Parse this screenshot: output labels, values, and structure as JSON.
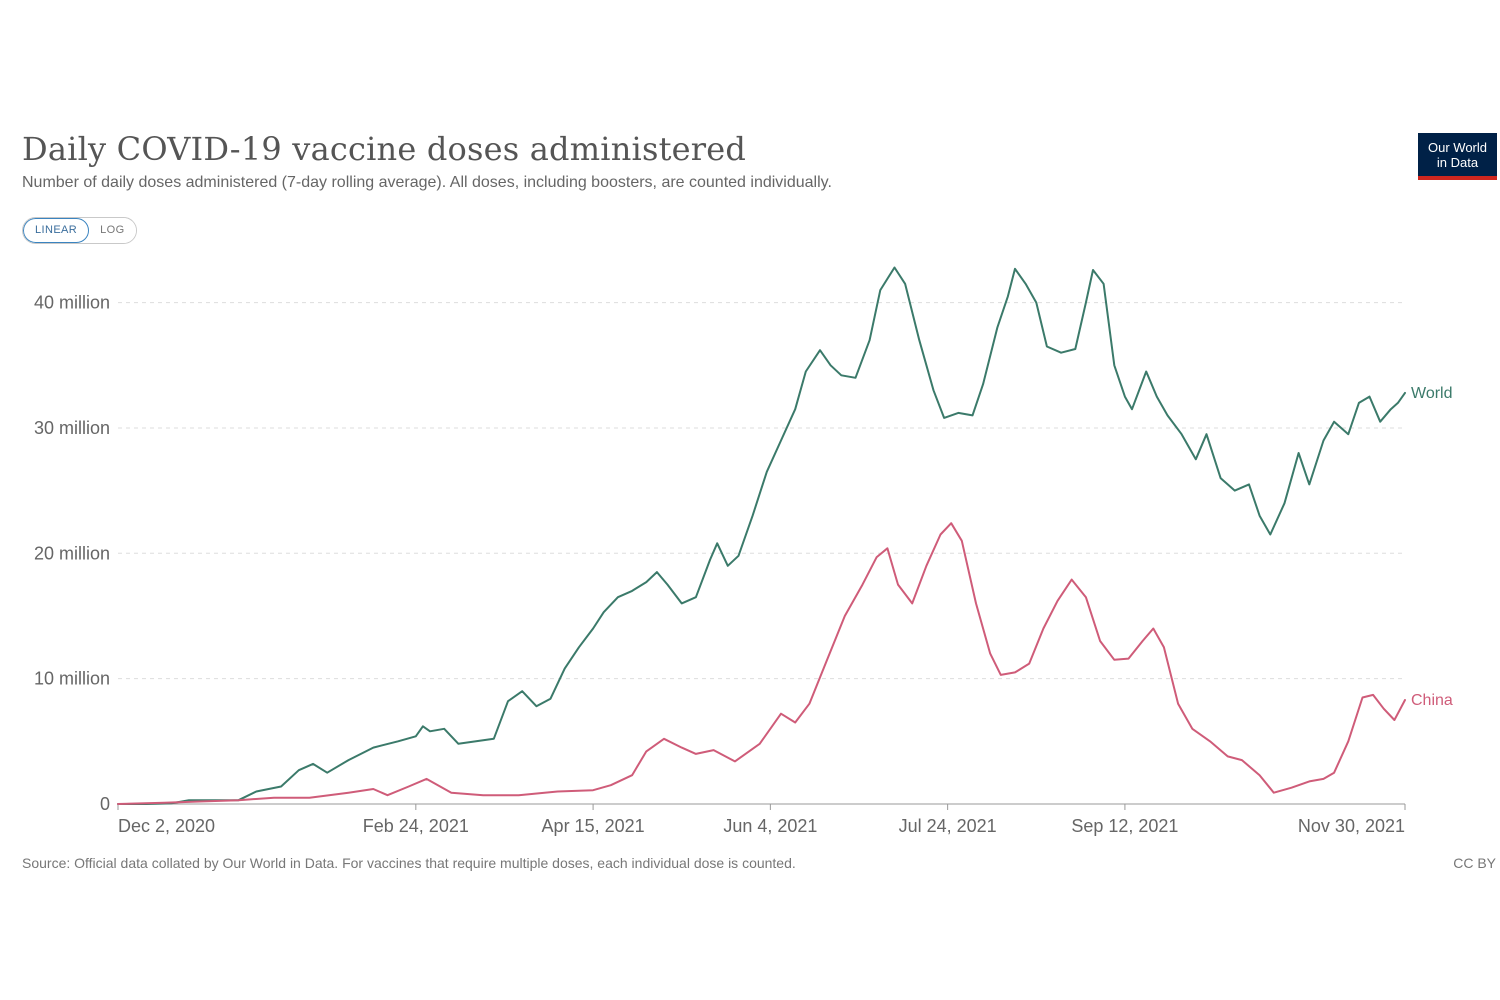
{
  "header": {
    "title": "Daily COVID-19 vaccine doses administered",
    "subtitle": "Number of daily doses administered (7-day rolling average). All doses, including boosters, are counted individually.",
    "logo_line1": "Our World",
    "logo_line2": "in Data"
  },
  "scale_toggle": {
    "options": [
      "LINEAR",
      "LOG"
    ],
    "selected": "LINEAR"
  },
  "footer": {
    "source": "Source: Official data collated by Our World in Data. For vaccines that require multiple doses, each individual dose is counted.",
    "license": "CC BY"
  },
  "colors": {
    "World": "#3b7a6a",
    "China": "#cf5c79",
    "grid": "#dddddd"
  },
  "chart_data": {
    "type": "line",
    "title": "Daily COVID-19 vaccine doses administered",
    "xlabel": "",
    "ylabel": "",
    "x_range": [
      "2020-12-02",
      "2021-11-30"
    ],
    "ylim": [
      0,
      43000000
    ],
    "y_ticks": [
      {
        "value": 0,
        "label": "0"
      },
      {
        "value": 10000000,
        "label": "10 million"
      },
      {
        "value": 20000000,
        "label": "20 million"
      },
      {
        "value": 30000000,
        "label": "30 million"
      },
      {
        "value": 40000000,
        "label": "40 million"
      }
    ],
    "x_ticks": [
      {
        "date": "2020-12-02",
        "label": "Dec 2, 2020"
      },
      {
        "date": "2021-02-24",
        "label": "Feb 24, 2021"
      },
      {
        "date": "2021-04-15",
        "label": "Apr 15, 2021"
      },
      {
        "date": "2021-06-04",
        "label": "Jun 4, 2021"
      },
      {
        "date": "2021-07-24",
        "label": "Jul 24, 2021"
      },
      {
        "date": "2021-09-12",
        "label": "Sep 12, 2021"
      },
      {
        "date": "2021-11-30",
        "label": "Nov 30, 2021"
      }
    ],
    "grid": true,
    "legend": "end-of-line labels",
    "series": [
      {
        "name": "World",
        "points": [
          [
            "2020-12-02",
            0
          ],
          [
            "2020-12-10",
            0
          ],
          [
            "2020-12-17",
            50000
          ],
          [
            "2020-12-22",
            300000
          ],
          [
            "2020-12-29",
            300000
          ],
          [
            "2021-01-05",
            300000
          ],
          [
            "2021-01-10",
            1000000
          ],
          [
            "2021-01-17",
            1400000
          ],
          [
            "2021-01-22",
            2700000
          ],
          [
            "2021-01-26",
            3200000
          ],
          [
            "2021-01-30",
            2500000
          ],
          [
            "2021-02-05",
            3500000
          ],
          [
            "2021-02-12",
            4500000
          ],
          [
            "2021-02-19",
            5000000
          ],
          [
            "2021-02-24",
            5400000
          ],
          [
            "2021-02-26",
            6200000
          ],
          [
            "2021-02-28",
            5800000
          ],
          [
            "2021-03-04",
            6000000
          ],
          [
            "2021-03-08",
            4800000
          ],
          [
            "2021-03-18",
            5200000
          ],
          [
            "2021-03-22",
            8200000
          ],
          [
            "2021-03-26",
            9000000
          ],
          [
            "2021-03-30",
            7800000
          ],
          [
            "2021-04-03",
            8400000
          ],
          [
            "2021-04-07",
            10800000
          ],
          [
            "2021-04-11",
            12500000
          ],
          [
            "2021-04-15",
            14000000
          ],
          [
            "2021-04-18",
            15300000
          ],
          [
            "2021-04-22",
            16500000
          ],
          [
            "2021-04-26",
            17000000
          ],
          [
            "2021-04-30",
            17700000
          ],
          [
            "2021-05-03",
            18500000
          ],
          [
            "2021-05-06",
            17500000
          ],
          [
            "2021-05-10",
            16000000
          ],
          [
            "2021-05-14",
            16500000
          ],
          [
            "2021-05-18",
            19500000
          ],
          [
            "2021-05-20",
            20800000
          ],
          [
            "2021-05-23",
            19000000
          ],
          [
            "2021-05-26",
            19800000
          ],
          [
            "2021-05-30",
            23000000
          ],
          [
            "2021-06-03",
            26500000
          ],
          [
            "2021-06-07",
            29000000
          ],
          [
            "2021-06-11",
            31500000
          ],
          [
            "2021-06-14",
            34500000
          ],
          [
            "2021-06-18",
            36200000
          ],
          [
            "2021-06-21",
            35000000
          ],
          [
            "2021-06-24",
            34200000
          ],
          [
            "2021-06-28",
            34000000
          ],
          [
            "2021-07-02",
            37000000
          ],
          [
            "2021-07-05",
            41000000
          ],
          [
            "2021-07-09",
            42800000
          ],
          [
            "2021-07-12",
            41500000
          ],
          [
            "2021-07-16",
            37000000
          ],
          [
            "2021-07-20",
            33000000
          ],
          [
            "2021-07-23",
            30800000
          ],
          [
            "2021-07-27",
            31200000
          ],
          [
            "2021-07-31",
            31000000
          ],
          [
            "2021-08-03",
            33500000
          ],
          [
            "2021-08-07",
            38000000
          ],
          [
            "2021-08-10",
            40500000
          ],
          [
            "2021-08-12",
            42700000
          ],
          [
            "2021-08-15",
            41500000
          ],
          [
            "2021-08-18",
            40000000
          ],
          [
            "2021-08-21",
            36500000
          ],
          [
            "2021-08-25",
            36000000
          ],
          [
            "2021-08-29",
            36300000
          ],
          [
            "2021-09-01",
            40000000
          ],
          [
            "2021-09-03",
            42600000
          ],
          [
            "2021-09-06",
            41500000
          ],
          [
            "2021-09-09",
            35000000
          ],
          [
            "2021-09-12",
            32500000
          ],
          [
            "2021-09-14",
            31500000
          ],
          [
            "2021-09-18",
            34500000
          ],
          [
            "2021-09-21",
            32500000
          ],
          [
            "2021-09-24",
            31000000
          ],
          [
            "2021-09-28",
            29500000
          ],
          [
            "2021-10-02",
            27500000
          ],
          [
            "2021-10-05",
            29500000
          ],
          [
            "2021-10-09",
            26000000
          ],
          [
            "2021-10-13",
            25000000
          ],
          [
            "2021-10-17",
            25500000
          ],
          [
            "2021-10-20",
            23000000
          ],
          [
            "2021-10-23",
            21500000
          ],
          [
            "2021-10-27",
            24000000
          ],
          [
            "2021-10-31",
            28000000
          ],
          [
            "2021-11-03",
            25500000
          ],
          [
            "2021-11-07",
            29000000
          ],
          [
            "2021-11-10",
            30500000
          ],
          [
            "2021-11-14",
            29500000
          ],
          [
            "2021-11-17",
            32000000
          ],
          [
            "2021-11-20",
            32500000
          ],
          [
            "2021-11-23",
            30500000
          ],
          [
            "2021-11-26",
            31500000
          ],
          [
            "2021-11-28",
            32000000
          ],
          [
            "2021-11-30",
            32800000
          ]
        ]
      },
      {
        "name": "China",
        "points": [
          [
            "2020-12-02",
            0
          ],
          [
            "2020-12-15",
            100000
          ],
          [
            "2020-12-25",
            200000
          ],
          [
            "2021-01-05",
            300000
          ],
          [
            "2021-01-15",
            500000
          ],
          [
            "2021-01-25",
            500000
          ],
          [
            "2021-02-05",
            900000
          ],
          [
            "2021-02-12",
            1200000
          ],
          [
            "2021-02-16",
            700000
          ],
          [
            "2021-02-22",
            1400000
          ],
          [
            "2021-02-27",
            2000000
          ],
          [
            "2021-03-06",
            900000
          ],
          [
            "2021-03-15",
            700000
          ],
          [
            "2021-03-25",
            700000
          ],
          [
            "2021-04-05",
            1000000
          ],
          [
            "2021-04-15",
            1100000
          ],
          [
            "2021-04-20",
            1500000
          ],
          [
            "2021-04-26",
            2300000
          ],
          [
            "2021-04-30",
            4200000
          ],
          [
            "2021-05-05",
            5200000
          ],
          [
            "2021-05-10",
            4500000
          ],
          [
            "2021-05-14",
            4000000
          ],
          [
            "2021-05-19",
            4300000
          ],
          [
            "2021-05-25",
            3400000
          ],
          [
            "2021-06-01",
            4800000
          ],
          [
            "2021-06-07",
            7200000
          ],
          [
            "2021-06-11",
            6500000
          ],
          [
            "2021-06-15",
            8000000
          ],
          [
            "2021-06-20",
            11500000
          ],
          [
            "2021-06-25",
            15000000
          ],
          [
            "2021-06-30",
            17500000
          ],
          [
            "2021-07-04",
            19700000
          ],
          [
            "2021-07-07",
            20400000
          ],
          [
            "2021-07-10",
            17500000
          ],
          [
            "2021-07-14",
            16000000
          ],
          [
            "2021-07-18",
            19000000
          ],
          [
            "2021-07-22",
            21500000
          ],
          [
            "2021-07-25",
            22400000
          ],
          [
            "2021-07-28",
            21000000
          ],
          [
            "2021-08-01",
            16000000
          ],
          [
            "2021-08-05",
            12000000
          ],
          [
            "2021-08-08",
            10300000
          ],
          [
            "2021-08-12",
            10500000
          ],
          [
            "2021-08-16",
            11200000
          ],
          [
            "2021-08-20",
            14000000
          ],
          [
            "2021-08-24",
            16200000
          ],
          [
            "2021-08-28",
            17900000
          ],
          [
            "2021-09-01",
            16500000
          ],
          [
            "2021-09-05",
            13000000
          ],
          [
            "2021-09-09",
            11500000
          ],
          [
            "2021-09-13",
            11600000
          ],
          [
            "2021-09-17",
            13000000
          ],
          [
            "2021-09-20",
            14000000
          ],
          [
            "2021-09-23",
            12500000
          ],
          [
            "2021-09-27",
            8000000
          ],
          [
            "2021-10-01",
            6000000
          ],
          [
            "2021-10-06",
            5000000
          ],
          [
            "2021-10-11",
            3800000
          ],
          [
            "2021-10-15",
            3500000
          ],
          [
            "2021-10-20",
            2300000
          ],
          [
            "2021-10-24",
            900000
          ],
          [
            "2021-10-29",
            1300000
          ],
          [
            "2021-11-03",
            1800000
          ],
          [
            "2021-11-07",
            2000000
          ],
          [
            "2021-11-10",
            2500000
          ],
          [
            "2021-11-14",
            5000000
          ],
          [
            "2021-11-18",
            8500000
          ],
          [
            "2021-11-21",
            8700000
          ],
          [
            "2021-11-24",
            7600000
          ],
          [
            "2021-11-27",
            6700000
          ],
          [
            "2021-11-30",
            8300000
          ]
        ]
      }
    ]
  }
}
